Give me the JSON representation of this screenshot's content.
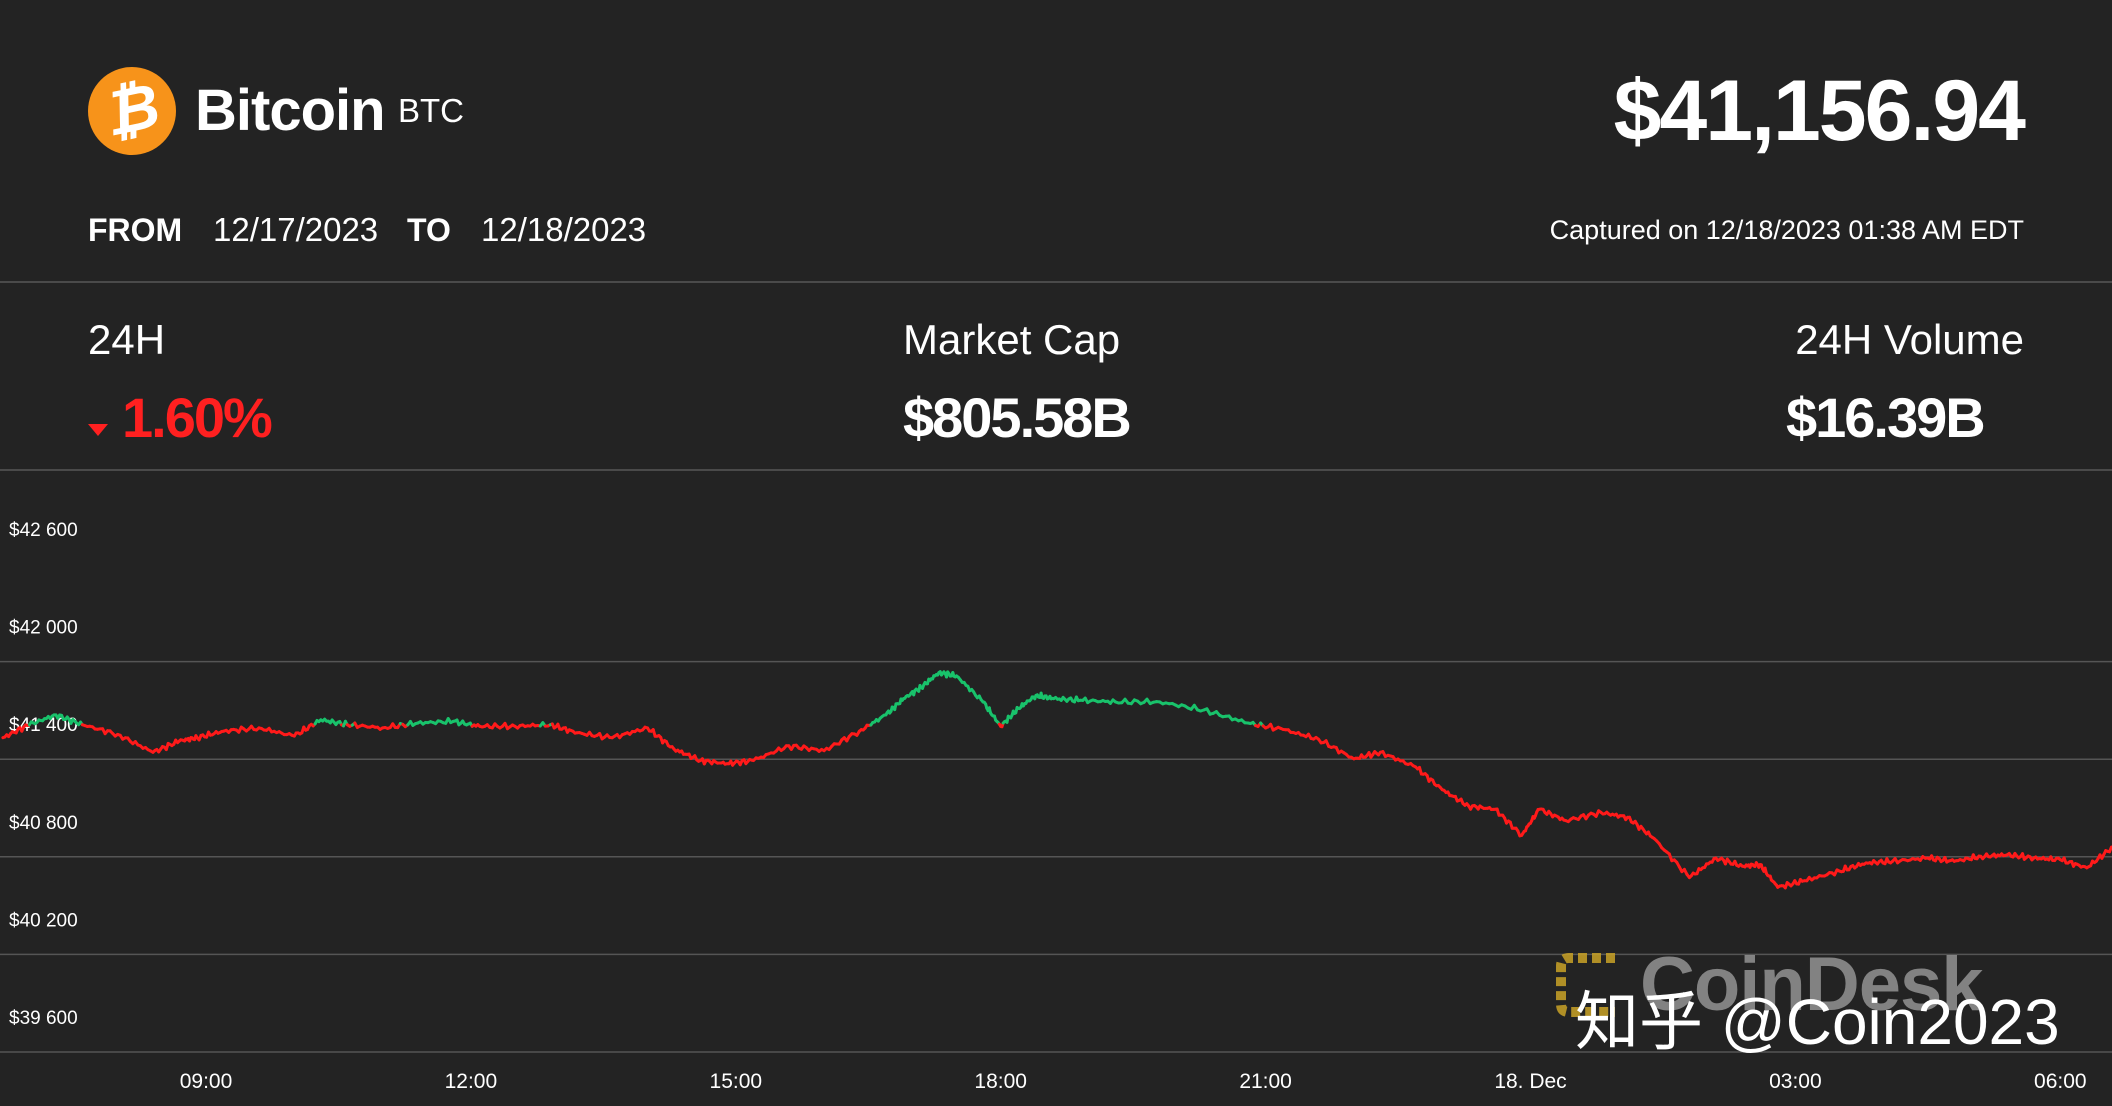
{
  "header": {
    "coin_name": "Bitcoin",
    "ticker": "BTC",
    "logo_glyph": "₿",
    "price": "$41,156.94",
    "from_label": "FROM",
    "from_date": "12/17/2023",
    "to_label": "TO",
    "to_date": "12/18/2023",
    "captured": "Captured on 12/18/2023 01:38 AM EDT"
  },
  "stats": {
    "change_label": "24H",
    "change_value": "1.60%",
    "market_cap_label": "Market Cap",
    "market_cap_value": "$805.58B",
    "volume_label": "24H Volume",
    "volume_value": "$16.39B"
  },
  "colors": {
    "background": "#232323",
    "up": "#19c26b",
    "down": "#ff1a1a",
    "logo": "#f7931a"
  },
  "watermark": {
    "brand": "CoinDesk",
    "text": "知乎 @Coin2023"
  },
  "chart_data": {
    "type": "line",
    "ylim": [
      39600,
      42600
    ],
    "yticks": [
      42600,
      42000,
      41400,
      40800,
      40200,
      39600
    ],
    "ytick_labels": [
      "$42 600",
      "$42 000",
      "$41 400",
      "$40 800",
      "$40 200",
      "$39 600"
    ],
    "xticks": [
      "09:00",
      "12:00",
      "15:00",
      "18:00",
      "21:00",
      "18. Dec",
      "03:00",
      "06:00"
    ],
    "grid": true,
    "reference_price": 41600,
    "series": [
      {
        "x_hours": [
          6.7,
          7.0,
          7.3,
          7.6,
          8.0,
          8.4,
          8.7,
          8.9,
          9.2,
          9.6,
          10.0,
          10.3,
          10.6,
          11.0,
          11.4,
          11.8,
          12.1,
          12.5,
          12.9,
          13.2,
          13.6,
          14.0,
          14.3,
          14.6,
          14.9,
          15.2,
          15.6,
          16.0,
          16.4,
          16.7,
          16.9,
          17.1,
          17.3,
          17.5,
          17.8,
          18.0,
          18.2,
          18.4,
          18.6,
          18.9,
          19.3,
          19.8,
          20.3,
          20.8,
          21.2,
          21.6,
          22.0,
          22.3,
          22.7,
          23.0,
          23.3,
          23.6,
          23.9,
          24.1,
          24.4,
          24.8,
          25.1,
          25.4,
          25.8,
          26.1,
          26.4,
          26.6,
          26.8,
          27.1,
          27.5,
          27.8,
          28.1,
          28.5,
          28.8,
          29.1,
          29.4,
          29.7,
          30.0,
          30.3,
          30.6
        ],
        "y": [
          41520,
          41600,
          41660,
          41600,
          41540,
          41430,
          41500,
          41520,
          41560,
          41580,
          41530,
          41630,
          41600,
          41580,
          41610,
          41620,
          41590,
          41590,
          41600,
          41550,
          41520,
          41580,
          41450,
          41380,
          41360,
          41380,
          41470,
          41440,
          41560,
          41660,
          41760,
          41830,
          41920,
          41900,
          41740,
          41590,
          41700,
          41780,
          41760,
          41750,
          41740,
          41740,
          41690,
          41610,
          41570,
          41510,
          41390,
          41430,
          41340,
          41200,
          41100,
          41080,
          40920,
          41080,
          41010,
          41060,
          41030,
          40900,
          40660,
          40780,
          40730,
          40740,
          40600,
          40640,
          40700,
          40750,
          40760,
          40780,
          40760,
          40790,
          40800,
          40780,
          40770,
          40720,
          40850
        ]
      }
    ]
  }
}
